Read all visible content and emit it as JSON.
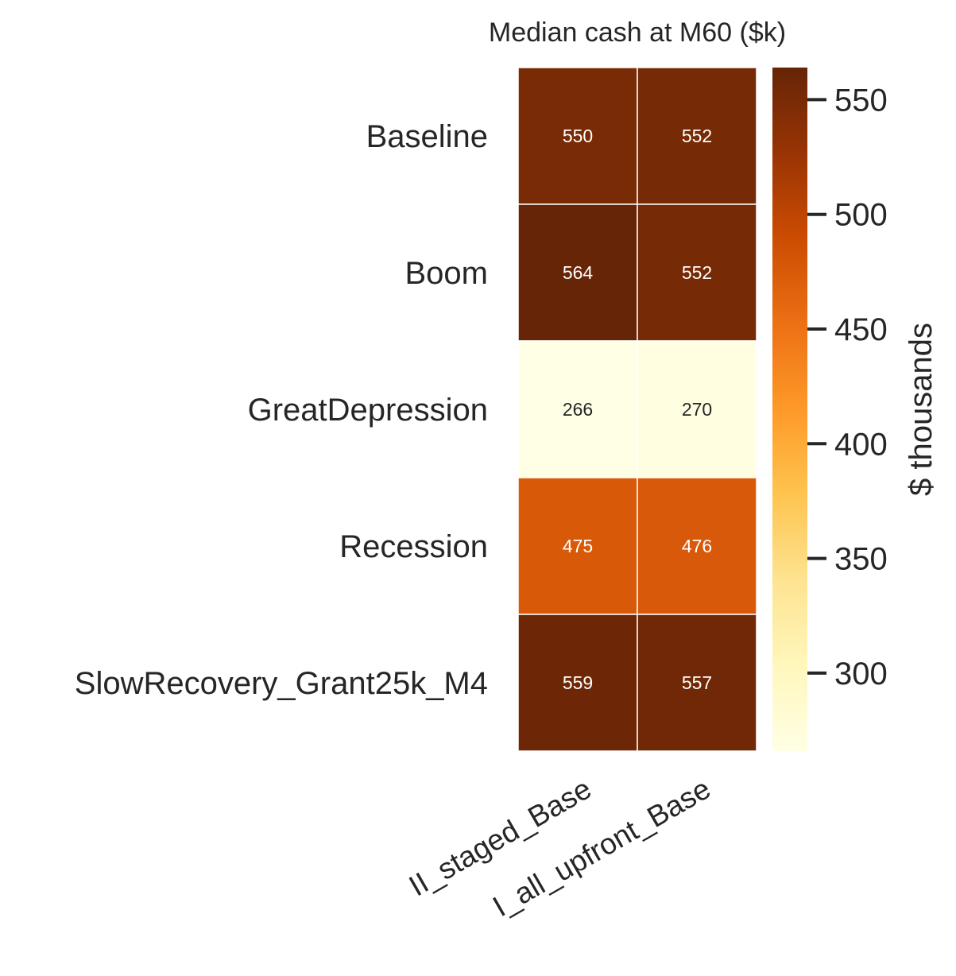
{
  "chart_data": {
    "type": "heatmap",
    "title": "Median cash at M60 ($k)",
    "rows": [
      "Baseline",
      "Boom",
      "GreatDepression",
      "Recession",
      "SlowRecovery_Grant25k_M4"
    ],
    "columns": [
      "II_staged_Base",
      "I_all_upfront_Base"
    ],
    "values": [
      [
        550,
        552
      ],
      [
        564,
        552
      ],
      [
        266,
        270
      ],
      [
        475,
        476
      ],
      [
        559,
        557
      ]
    ],
    "colorbar": {
      "label": "$ thousands",
      "range": [
        266,
        564
      ],
      "ticks": [
        "300",
        "350",
        "400",
        "450",
        "500",
        "550"
      ],
      "colormap": "YlOrBr",
      "colors": [
        "#ffffe5",
        "#fff7bc",
        "#fee391",
        "#fec44f",
        "#fe9929",
        "#ec7014",
        "#cc4c02",
        "#993404",
        "#662506"
      ]
    },
    "grid": false,
    "legend": "colorbar-right"
  }
}
